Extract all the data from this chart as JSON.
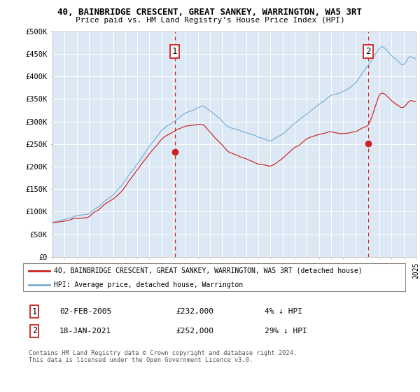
{
  "title_line1": "40, BAINBRIDGE CRESCENT, GREAT SANKEY, WARRINGTON, WA5 3RT",
  "title_line2": "Price paid vs. HM Land Registry's House Price Index (HPI)",
  "legend_label1": "40, BAINBRIDGE CRESCENT, GREAT SANKEY, WARRINGTON, WA5 3RT (detached house)",
  "legend_label2": "HPI: Average price, detached house, Warrington",
  "sale1_date": "02-FEB-2005",
  "sale1_price": "£232,000",
  "sale1_hpi": "4% ↓ HPI",
  "sale2_date": "18-JAN-2021",
  "sale2_price": "£252,000",
  "sale2_hpi": "29% ↓ HPI",
  "copyright": "Contains HM Land Registry data © Crown copyright and database right 2024.\nThis data is licensed under the Open Government Licence v3.0.",
  "plot_bg_color": "#dde8f5",
  "hpi_line_color": "#7aafd4",
  "price_line_color": "#cc2222",
  "dashed_line_color": "#cc2222",
  "ylim_min": 0,
  "ylim_max": 500000,
  "yticks": [
    0,
    50000,
    100000,
    150000,
    200000,
    250000,
    300000,
    350000,
    400000,
    450000,
    500000
  ],
  "sale1_x": 2005.09,
  "sale1_y": 232000,
  "sale2_x": 2021.05,
  "sale2_y": 252000,
  "xmin": 1995,
  "xmax": 2025
}
